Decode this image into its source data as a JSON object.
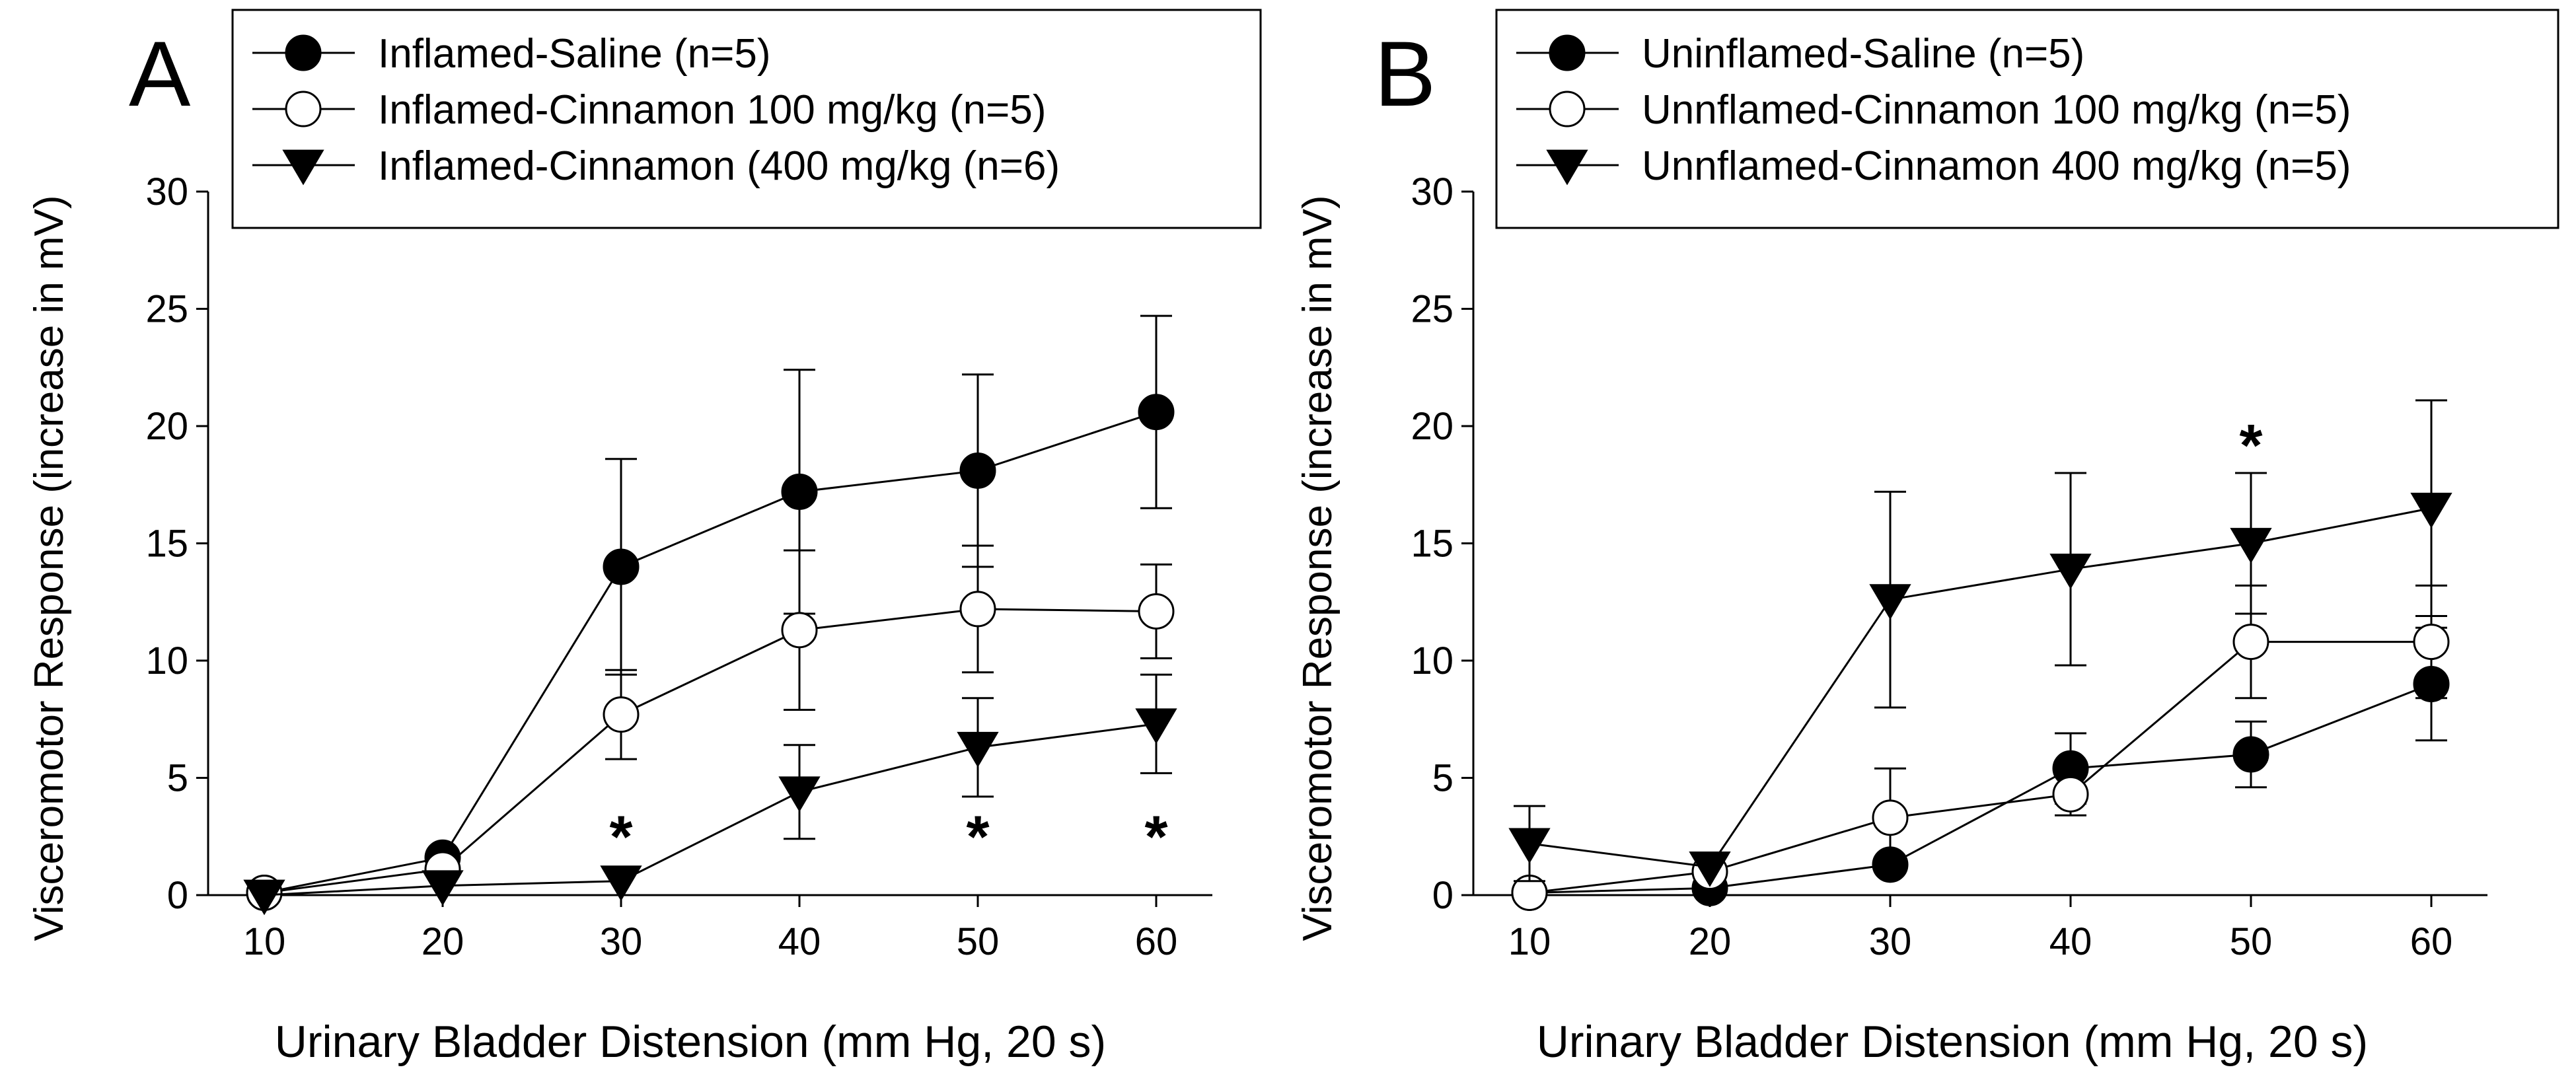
{
  "chart_data": [
    {
      "panel_label": "A",
      "type": "line",
      "xlabel": "Urinary Bladder Distension (mm Hg, 20 s)",
      "ylabel": "Visceromotor Response (increase in mV)",
      "xlim": [
        10,
        60
      ],
      "ylim": [
        0,
        30
      ],
      "x_ticks": [
        10,
        20,
        30,
        40,
        50,
        60
      ],
      "y_ticks": [
        0,
        5,
        10,
        15,
        20,
        25,
        30
      ],
      "grid": false,
      "legend_position": "top",
      "series": [
        {
          "name": "Inflamed-Saline (n=5)",
          "marker": "filled-circle",
          "x": [
            10,
            20,
            30,
            40,
            50,
            60
          ],
          "y": [
            0.1,
            1.6,
            14.0,
            17.2,
            18.1,
            20.6
          ],
          "err": [
            0,
            0,
            4.6,
            5.2,
            4.1,
            4.1
          ]
        },
        {
          "name": "Inflamed-Cinnamon 100 mg/kg (n=5)",
          "marker": "open-circle",
          "x": [
            10,
            20,
            30,
            40,
            50,
            60
          ],
          "y": [
            0.1,
            1.1,
            7.7,
            11.3,
            12.2,
            12.1
          ],
          "err": [
            0,
            0,
            1.9,
            3.4,
            2.7,
            2.0
          ]
        },
        {
          "name": "Inflamed-Cinnamon (400 mg/kg (n=6)",
          "marker": "filled-triangle-down",
          "x": [
            10,
            20,
            30,
            40,
            50,
            60
          ],
          "y": [
            0.0,
            0.4,
            0.6,
            4.4,
            6.3,
            7.3
          ],
          "err": [
            0,
            0,
            0,
            2.0,
            2.1,
            2.1
          ]
        }
      ],
      "annotations": [
        {
          "text": "*",
          "x": 30,
          "y": 2.6
        },
        {
          "text": "*",
          "x": 50,
          "y": 2.6
        },
        {
          "text": "*",
          "x": 60,
          "y": 2.6
        }
      ]
    },
    {
      "panel_label": "B",
      "type": "line",
      "xlabel": "Urinary Bladder Distension (mm Hg, 20 s)",
      "ylabel": "Visceromotor Response (increase in mV)",
      "xlim": [
        10,
        60
      ],
      "ylim": [
        0,
        30
      ],
      "x_ticks": [
        10,
        20,
        30,
        40,
        50,
        60
      ],
      "y_ticks": [
        0,
        5,
        10,
        15,
        20,
        25,
        30
      ],
      "grid": false,
      "legend_position": "top",
      "series": [
        {
          "name": "Uninflamed-Saline (n=5)",
          "marker": "filled-circle",
          "x": [
            10,
            20,
            30,
            40,
            50,
            60
          ],
          "y": [
            0.1,
            0.3,
            1.3,
            5.4,
            6.0,
            9.0
          ],
          "err": [
            0,
            0,
            0,
            1.5,
            1.4,
            2.4
          ]
        },
        {
          "name": "Unnflamed-Cinnamon 100 mg/kg (n=5)",
          "marker": "open-circle",
          "x": [
            10,
            20,
            30,
            40,
            50,
            60
          ],
          "y": [
            0.1,
            1.0,
            3.3,
            4.3,
            10.8,
            10.8
          ],
          "err": [
            0,
            0,
            2.1,
            0.9,
            2.4,
            2.4
          ]
        },
        {
          "name": "Unnflamed-Cinnamon 400 mg/kg (n=5)",
          "marker": "filled-triangle-down",
          "x": [
            10,
            20,
            30,
            40,
            50,
            60
          ],
          "y": [
            2.2,
            1.2,
            12.6,
            13.9,
            15.0,
            16.5
          ],
          "err": [
            1.6,
            0,
            4.6,
            4.1,
            3.0,
            4.6
          ]
        }
      ],
      "annotations": [
        {
          "text": "*",
          "x": 50,
          "y": 19.3
        }
      ]
    }
  ]
}
